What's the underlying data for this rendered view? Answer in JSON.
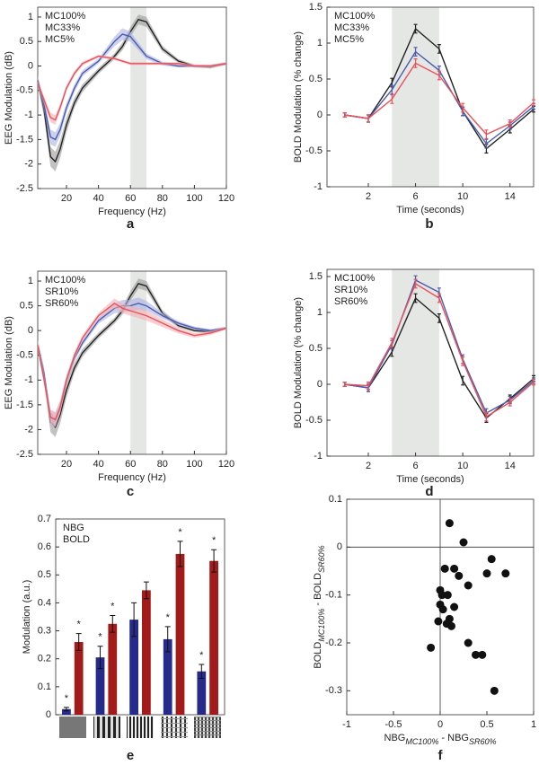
{
  "chart_data": [
    {
      "type": "line",
      "panel_label": "a",
      "xlabel": "Frequency (Hz)",
      "ylabel": "EEG Modulation (dB)",
      "xlim": [
        2,
        120
      ],
      "ylim": [
        -2.5,
        1.2
      ],
      "xticks": [
        20,
        40,
        60,
        80,
        100,
        120
      ],
      "yticks": [
        -2.5,
        -2,
        -1.5,
        -1,
        -0.5,
        0,
        0.5,
        1
      ],
      "shade": [
        60,
        70
      ],
      "error_style": "band",
      "x": [
        2,
        6,
        10,
        13,
        16,
        20,
        25,
        30,
        40,
        50,
        55,
        60,
        65,
        70,
        80,
        90,
        100,
        110,
        120
      ],
      "series": [
        {
          "name": "MC100%",
          "color": "#222222",
          "band_color": "#9a9a9a",
          "values": [
            -0.3,
            -0.9,
            -1.85,
            -1.95,
            -1.7,
            -1.2,
            -0.75,
            -0.45,
            -0.1,
            0.2,
            0.4,
            0.7,
            0.95,
            0.9,
            0.35,
            0.1,
            0,
            -0.02,
            0.05
          ],
          "errors": [
            0.1,
            0.15,
            0.2,
            0.2,
            0.18,
            0.15,
            0.1,
            0.08,
            0.06,
            0.06,
            0.08,
            0.1,
            0.1,
            0.1,
            0.06,
            0.04,
            0.03,
            0.03,
            0.03
          ]
        },
        {
          "name": "MC33%",
          "color": "#4a5bb0",
          "band_color": "#aab2e2",
          "values": [
            -0.3,
            -0.8,
            -1.45,
            -1.5,
            -1.3,
            -0.85,
            -0.45,
            -0.15,
            0.1,
            0.5,
            0.65,
            0.6,
            0.4,
            0.2,
            0.05,
            0,
            0,
            0,
            0.05
          ],
          "errors": [
            0.08,
            0.12,
            0.15,
            0.15,
            0.13,
            0.1,
            0.08,
            0.06,
            0.05,
            0.1,
            0.12,
            0.1,
            0.08,
            0.06,
            0.04,
            0.03,
            0.03,
            0.03,
            0.03
          ]
        },
        {
          "name": "MC5%",
          "color": "#e8505a",
          "band_color": "#f4b0b4",
          "values": [
            -0.35,
            -0.7,
            -1.05,
            -1.1,
            -0.85,
            -0.45,
            -0.15,
            0.05,
            0.2,
            0.15,
            0.1,
            0.05,
            0.05,
            0.05,
            0.05,
            0.05,
            0,
            0,
            0.05
          ],
          "errors": [
            0.05,
            0.08,
            0.1,
            0.1,
            0.08,
            0.06,
            0.05,
            0.04,
            0.03,
            0.03,
            0.03,
            0.03,
            0.03,
            0.03,
            0.03,
            0.03,
            0.03,
            0.03,
            0.03
          ]
        }
      ]
    },
    {
      "type": "line",
      "panel_label": "b",
      "xlabel": "Time (seconds)",
      "ylabel": "BOLD Modulation (% change)",
      "xlim": [
        -1.5,
        16
      ],
      "ylim": [
        -1,
        1.5
      ],
      "xticks": [
        2,
        6,
        10,
        14
      ],
      "yticks": [
        -1,
        -0.5,
        0,
        0.5,
        1,
        1.5
      ],
      "shade": [
        4,
        8
      ],
      "error_style": "bars",
      "x": [
        0,
        2,
        4,
        6,
        8,
        10,
        12,
        14,
        16
      ],
      "series": [
        {
          "name": "MC100%",
          "color": "#222222",
          "values": [
            0,
            -0.05,
            0.45,
            1.2,
            0.92,
            0.05,
            -0.47,
            -0.2,
            0.08
          ],
          "errors": [
            0.03,
            0.05,
            0.06,
            0.06,
            0.06,
            0.06,
            0.06,
            0.05,
            0.04
          ]
        },
        {
          "name": "MC33%",
          "color": "#4a5bb0",
          "values": [
            0,
            -0.05,
            0.35,
            0.88,
            0.62,
            0.05,
            -0.4,
            -0.15,
            0.12
          ],
          "errors": [
            0.03,
            0.05,
            0.06,
            0.06,
            0.06,
            0.06,
            0.06,
            0.05,
            0.04
          ]
        },
        {
          "name": "MC5%",
          "color": "#e8505a",
          "values": [
            0,
            -0.05,
            0.22,
            0.72,
            0.55,
            0.1,
            -0.27,
            -0.12,
            0.17
          ],
          "errors": [
            0.03,
            0.05,
            0.06,
            0.06,
            0.06,
            0.06,
            0.06,
            0.05,
            0.04
          ]
        }
      ]
    },
    {
      "type": "line",
      "panel_label": "c",
      "xlabel": "Frequency (Hz)",
      "ylabel": "EEG Modulation (dB)",
      "xlim": [
        2,
        120
      ],
      "ylim": [
        -2.5,
        1.2
      ],
      "xticks": [
        20,
        40,
        60,
        80,
        100,
        120
      ],
      "yticks": [
        -2.5,
        -2,
        -1.5,
        -1,
        -0.5,
        0,
        0.5,
        1
      ],
      "shade": [
        60,
        70
      ],
      "error_style": "band",
      "x": [
        2,
        6,
        10,
        13,
        16,
        20,
        25,
        30,
        40,
        50,
        55,
        60,
        65,
        70,
        80,
        90,
        100,
        110,
        120
      ],
      "series": [
        {
          "name": "MC100%",
          "color": "#222222",
          "band_color": "#9a9a9a",
          "values": [
            -0.3,
            -0.9,
            -1.85,
            -1.95,
            -1.7,
            -1.2,
            -0.75,
            -0.45,
            -0.1,
            0.2,
            0.4,
            0.7,
            0.95,
            0.9,
            0.35,
            0.1,
            0,
            -0.02,
            0.05
          ],
          "errors": [
            0.1,
            0.15,
            0.2,
            0.2,
            0.18,
            0.15,
            0.1,
            0.08,
            0.06,
            0.06,
            0.08,
            0.1,
            0.1,
            0.1,
            0.06,
            0.04,
            0.03,
            0.03,
            0.03
          ]
        },
        {
          "name": "SR10%",
          "color": "#4a5bb0",
          "band_color": "#aab2e2",
          "values": [
            -0.3,
            -0.9,
            -1.75,
            -1.8,
            -1.55,
            -1,
            -0.55,
            -0.25,
            0.2,
            0.45,
            0.5,
            0.5,
            0.55,
            0.5,
            0.3,
            0.15,
            0.05,
            0,
            0.05
          ],
          "errors": [
            0.1,
            0.12,
            0.15,
            0.15,
            0.13,
            0.1,
            0.08,
            0.06,
            0.06,
            0.1,
            0.12,
            0.12,
            0.12,
            0.1,
            0.06,
            0.04,
            0.03,
            0.03,
            0.03
          ]
        },
        {
          "name": "SR60%",
          "color": "#e8505a",
          "band_color": "#f4b0b4",
          "values": [
            -0.3,
            -1,
            -1.75,
            -1.8,
            -1.55,
            -1,
            -0.5,
            -0.15,
            0.3,
            0.55,
            0.45,
            0.4,
            0.35,
            0.3,
            0.15,
            0,
            -0.1,
            -0.05,
            0.05
          ],
          "errors": [
            0.1,
            0.12,
            0.15,
            0.15,
            0.13,
            0.1,
            0.08,
            0.06,
            0.06,
            0.1,
            0.1,
            0.1,
            0.1,
            0.1,
            0.08,
            0.06,
            0.05,
            0.04,
            0.03
          ]
        }
      ]
    },
    {
      "type": "line",
      "panel_label": "d",
      "xlabel": "Time (seconds)",
      "ylabel": "BOLD Modulation (% change)",
      "xlim": [
        -1.5,
        16
      ],
      "ylim": [
        -1,
        1.6
      ],
      "xticks": [
        2,
        6,
        10,
        14
      ],
      "yticks": [
        -1,
        -0.5,
        0,
        0.5,
        1,
        1.5
      ],
      "shade": [
        4,
        8
      ],
      "error_style": "bars",
      "x": [
        0,
        2,
        4,
        6,
        8,
        10,
        12,
        14,
        16
      ],
      "series": [
        {
          "name": "MC100%",
          "color": "#222222",
          "values": [
            0,
            -0.05,
            0.45,
            1.2,
            0.92,
            0.05,
            -0.47,
            -0.2,
            0.08
          ],
          "errors": [
            0.03,
            0.05,
            0.06,
            0.06,
            0.06,
            0.06,
            0.06,
            0.05,
            0.04
          ]
        },
        {
          "name": "SR10%",
          "color": "#4a5bb0",
          "values": [
            0,
            -0.05,
            0.55,
            1.45,
            1.28,
            0.35,
            -0.4,
            -0.22,
            0.05
          ],
          "errors": [
            0.03,
            0.05,
            0.06,
            0.06,
            0.06,
            0.06,
            0.06,
            0.05,
            0.04
          ]
        },
        {
          "name": "SR60%",
          "color": "#e8505a",
          "values": [
            0,
            -0.02,
            0.58,
            1.4,
            1.2,
            0.32,
            -0.45,
            -0.25,
            0.03
          ],
          "errors": [
            0.03,
            0.05,
            0.06,
            0.06,
            0.06,
            0.06,
            0.06,
            0.05,
            0.04
          ]
        }
      ]
    },
    {
      "type": "bar",
      "panel_label": "e",
      "ylabel": "Modulation (a.u.)",
      "ylim": [
        0,
        0.7
      ],
      "yticks": [
        0,
        0.1,
        0.2,
        0.3,
        0.4,
        0.5,
        0.6,
        0.7
      ],
      "categories": [
        null,
        null,
        null,
        null,
        null
      ],
      "series": [
        {
          "name": "NBG",
          "color": "#262a8a",
          "values": [
            0.02,
            0.205,
            0.34,
            0.27,
            0.155
          ],
          "errors": [
            0.006,
            0.04,
            0.06,
            0.045,
            0.025
          ],
          "markers": [
            "*",
            "*",
            null,
            "*",
            "*"
          ]
        },
        {
          "name": "BOLD",
          "color": "#a31a1a",
          "values": [
            0.26,
            0.325,
            0.445,
            0.575,
            0.55
          ],
          "errors": [
            0.03,
            0.03,
            0.03,
            0.045,
            0.04
          ],
          "markers": [
            "*",
            "*",
            null,
            "*",
            "*"
          ]
        }
      ]
    },
    {
      "type": "scatter",
      "panel_label": "f",
      "xlim": [
        -1,
        1
      ],
      "ylim": [
        -0.35,
        0.1
      ],
      "xticks": [
        -1,
        -0.5,
        0,
        0.5,
        1
      ],
      "yticks": [
        -0.3,
        -0.2,
        -0.1,
        0,
        0.1
      ],
      "zero_lines": true,
      "xlabel": [
        {
          "text": "NBG"
        },
        {
          "text": "MC100%",
          "sub": true
        },
        {
          "text": " - NBG"
        },
        {
          "text": "SR60%",
          "sub": true
        }
      ],
      "ylabel": [
        {
          "text": "BOLD"
        },
        {
          "text": "MC100%",
          "sub": true
        },
        {
          "text": " - BOLD"
        },
        {
          "text": "SR60%",
          "sub": true
        }
      ],
      "color": "#111111",
      "x": [
        0.1,
        0.25,
        0.55,
        0.7,
        0.5,
        0.05,
        0.15,
        0.2,
        0.3,
        0,
        0.02,
        0.08,
        0,
        0.03,
        0.15,
        0.1,
        -0.02,
        0.07,
        0.12,
        0.3,
        -0.1,
        0.38,
        0.45,
        0.58
      ],
      "y": [
        0.05,
        0.01,
        -0.025,
        -0.055,
        -0.055,
        -0.045,
        -0.045,
        -0.06,
        -0.08,
        -0.09,
        -0.1,
        -0.1,
        -0.12,
        -0.13,
        -0.125,
        -0.15,
        -0.155,
        -0.16,
        -0.165,
        -0.2,
        -0.21,
        -0.225,
        -0.225,
        -0.3
      ]
    }
  ]
}
